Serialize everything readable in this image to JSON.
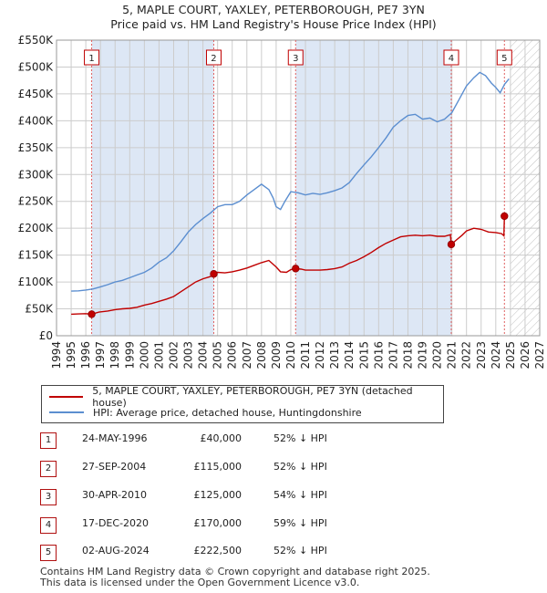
{
  "title": {
    "line1": "5, MAPLE COURT, YAXLEY, PETERBOROUGH, PE7 3YN",
    "line2": "Price paid vs. HM Land Registry's House Price Index (HPI)"
  },
  "colors": {
    "price_paid": "#c00000",
    "hpi": "#5b8ed0",
    "band": "#dde7f5",
    "grid": "#cccccc",
    "marker_line": "#e06060"
  },
  "legend": {
    "price_label": "5, MAPLE COURT, YAXLEY, PETERBOROUGH, PE7 3YN (detached house)",
    "hpi_label": "HPI: Average price, detached house, Huntingdonshire"
  },
  "transactions": [
    {
      "num": "1",
      "date": "24-MAY-1996",
      "price": "£40,000",
      "hpi": "52% ↓ HPI"
    },
    {
      "num": "2",
      "date": "27-SEP-2004",
      "price": "£115,000",
      "hpi": "52% ↓ HPI"
    },
    {
      "num": "3",
      "date": "30-APR-2010",
      "price": "£125,000",
      "hpi": "54% ↓ HPI"
    },
    {
      "num": "4",
      "date": "17-DEC-2020",
      "price": "£170,000",
      "hpi": "59% ↓ HPI"
    },
    {
      "num": "5",
      "date": "02-AUG-2024",
      "price": "£222,500",
      "hpi": "52% ↓ HPI"
    }
  ],
  "footer": {
    "line1": "Contains HM Land Registry data © Crown copyright and database right 2025.",
    "line2": "This data is licensed under the Open Government Licence v3.0."
  },
  "chart_data": {
    "type": "line",
    "title": "5, MAPLE COURT, YAXLEY, PETERBOROUGH, PE7 3YN",
    "subtitle": "Price paid vs. HM Land Registry's House Price Index (HPI)",
    "xlim": [
      1994,
      2027
    ],
    "ylim": [
      0,
      550000
    ],
    "x_ticks": [
      1994,
      1995,
      1996,
      1997,
      1998,
      1999,
      2000,
      2001,
      2002,
      2003,
      2004,
      2005,
      2006,
      2007,
      2008,
      2009,
      2010,
      2011,
      2012,
      2013,
      2014,
      2015,
      2016,
      2017,
      2018,
      2019,
      2020,
      2021,
      2022,
      2023,
      2024,
      2025,
      2026,
      2027
    ],
    "y_ticks": [
      0,
      50000,
      100000,
      150000,
      200000,
      250000,
      300000,
      350000,
      400000,
      450000,
      500000,
      550000
    ],
    "y_tick_labels": [
      "£0",
      "£50K",
      "£100K",
      "£150K",
      "£200K",
      "£250K",
      "£300K",
      "£350K",
      "£400K",
      "£450K",
      "£500K",
      "£550K"
    ],
    "grid": true,
    "projection_hatch_from": 2025,
    "series": [
      {
        "name": "5, MAPLE COURT, YAXLEY, PETERBOROUGH, PE7 3YN (detached house)",
        "color": "#c00000",
        "x": [
          1995.0,
          1995.5,
          1996.0,
          1996.4,
          1996.9,
          1997.5,
          1998.0,
          1998.5,
          1999.0,
          1999.5,
          2000.0,
          2000.5,
          2001.0,
          2001.5,
          2002.0,
          2002.5,
          2003.0,
          2003.5,
          2004.0,
          2004.5,
          2004.74,
          2005.0,
          2005.5,
          2006.0,
          2006.5,
          2007.0,
          2007.5,
          2008.0,
          2008.5,
          2009.0,
          2009.3,
          2009.7,
          2010.0,
          2010.33,
          2010.7,
          2011.0,
          2011.5,
          2012.0,
          2012.5,
          2013.0,
          2013.5,
          2014.0,
          2014.5,
          2015.0,
          2015.5,
          2016.0,
          2016.5,
          2017.0,
          2017.5,
          2018.0,
          2018.5,
          2019.0,
          2019.5,
          2020.0,
          2020.5,
          2020.9,
          2020.96,
          2021.3,
          2021.7,
          2022.0,
          2022.5,
          2023.0,
          2023.5,
          2024.0,
          2024.4,
          2024.55,
          2024.59,
          2024.8
        ],
        "y": [
          40000,
          40500,
          41000,
          40000,
          44000,
          46000,
          48500,
          50000,
          51000,
          53000,
          57000,
          60000,
          64000,
          68000,
          73000,
          82000,
          91000,
          100000,
          106000,
          110000,
          115000,
          118000,
          117000,
          119000,
          122000,
          126000,
          131000,
          136000,
          140000,
          128000,
          119000,
          118000,
          123000,
          125000,
          124000,
          122000,
          122000,
          122000,
          123000,
          125000,
          128000,
          135000,
          140000,
          147000,
          155000,
          164000,
          172000,
          178000,
          184000,
          186000,
          187000,
          186000,
          187000,
          185000,
          185000,
          188000,
          170000,
          178000,
          187000,
          195000,
          200000,
          198000,
          193000,
          192000,
          190000,
          186000,
          222500,
          224000
        ]
      },
      {
        "name": "HPI: Average price, detached house, Huntingdonshire",
        "color": "#5b8ed0",
        "x": [
          1995.0,
          1995.5,
          1996.0,
          1996.5,
          1997.0,
          1997.5,
          1998.0,
          1998.5,
          1999.0,
          1999.5,
          2000.0,
          2000.5,
          2001.0,
          2001.5,
          2002.0,
          2002.5,
          2003.0,
          2003.5,
          2004.0,
          2004.5,
          2005.0,
          2005.5,
          2006.0,
          2006.5,
          2007.0,
          2007.5,
          2008.0,
          2008.5,
          2008.8,
          2009.0,
          2009.3,
          2009.6,
          2010.0,
          2010.5,
          2011.0,
          2011.5,
          2012.0,
          2012.5,
          2013.0,
          2013.5,
          2014.0,
          2014.5,
          2015.0,
          2015.5,
          2016.0,
          2016.5,
          2017.0,
          2017.5,
          2018.0,
          2018.5,
          2019.0,
          2019.5,
          2020.0,
          2020.5,
          2021.0,
          2021.5,
          2022.0,
          2022.5,
          2022.9,
          2023.3,
          2023.7,
          2024.0,
          2024.3,
          2024.6,
          2024.9
        ],
        "y": [
          83000,
          83500,
          85000,
          87000,
          91000,
          95000,
          100000,
          103000,
          108000,
          113000,
          118000,
          126000,
          137000,
          145000,
          158000,
          175000,
          193000,
          207000,
          218000,
          228000,
          240000,
          244000,
          244000,
          250000,
          262000,
          272000,
          282000,
          272000,
          256000,
          240000,
          235000,
          250000,
          268000,
          266000,
          262000,
          265000,
          263000,
          266000,
          270000,
          275000,
          285000,
          302000,
          318000,
          333000,
          350000,
          368000,
          388000,
          400000,
          410000,
          412000,
          403000,
          405000,
          398000,
          403000,
          415000,
          440000,
          465000,
          480000,
          490000,
          484000,
          470000,
          462000,
          452000,
          468000,
          478000
        ]
      }
    ],
    "annotations": [
      {
        "label": "1",
        "x": 1996.4,
        "y": 40000
      },
      {
        "label": "2",
        "x": 2004.74,
        "y": 115000
      },
      {
        "label": "3",
        "x": 2010.33,
        "y": 125000
      },
      {
        "label": "4",
        "x": 2020.96,
        "y": 170000
      },
      {
        "label": "5",
        "x": 2024.59,
        "y": 222500
      }
    ],
    "shaded_intervals": [
      [
        1996.4,
        2004.74
      ],
      [
        2010.33,
        2020.96
      ]
    ]
  }
}
